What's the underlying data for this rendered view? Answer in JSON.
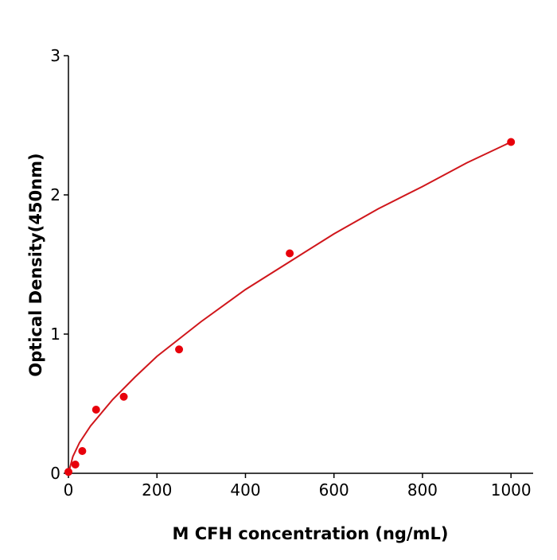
{
  "chart_data": {
    "type": "scatter",
    "title": "",
    "xlabel": "M  CFH concentration (ng/mL)",
    "ylabel": "Optical Density(450nm)",
    "xlim": [
      0,
      1050
    ],
    "ylim": [
      0,
      3
    ],
    "xticks": [
      0,
      200,
      400,
      600,
      800,
      1000
    ],
    "yticks": [
      0,
      1,
      2,
      3
    ],
    "grid": false,
    "colors": {
      "points": "#e8000b",
      "curve": "#d0161b",
      "axis": "#000000"
    },
    "points": {
      "x": [
        0,
        15.6,
        31.25,
        62.5,
        125,
        250,
        500,
        1000
      ],
      "y": [
        0.01,
        0.063,
        0.16,
        0.457,
        0.55,
        0.89,
        1.58,
        2.38
      ]
    },
    "fit_curve": {
      "x": [
        0,
        10,
        25,
        50,
        100,
        150,
        200,
        300,
        400,
        500,
        600,
        700,
        800,
        900,
        1000
      ],
      "y": [
        0,
        0.12,
        0.22,
        0.34,
        0.53,
        0.69,
        0.84,
        1.09,
        1.32,
        1.52,
        1.72,
        1.9,
        2.06,
        2.23,
        2.38
      ]
    }
  }
}
